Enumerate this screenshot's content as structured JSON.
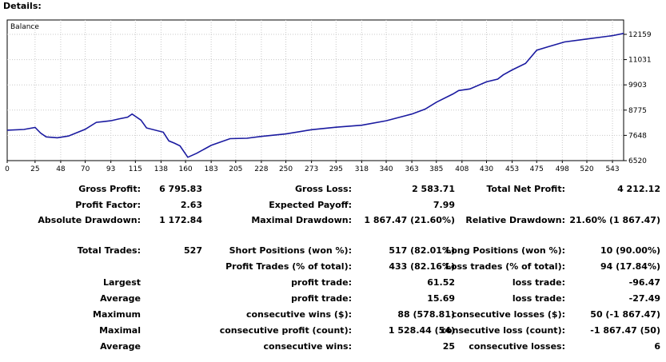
{
  "header": {
    "title": "Details:"
  },
  "chart_data": {
    "type": "line",
    "legend": "Balance",
    "series": [
      {
        "name": "Balance",
        "x": [
          0,
          15,
          25,
          30,
          35,
          45,
          55,
          70,
          80,
          93,
          100,
          108,
          112,
          120,
          125,
          140,
          145,
          150,
          155,
          162,
          170,
          183,
          200,
          215,
          228,
          250,
          273,
          295,
          318,
          340,
          363,
          375,
          385,
          400,
          405,
          415,
          430,
          440,
          445,
          453,
          465,
          475,
          485,
          500,
          520,
          543,
          553
        ],
        "values": [
          7880,
          7910,
          8000,
          7750,
          7580,
          7540,
          7620,
          7920,
          8230,
          8300,
          8380,
          8460,
          8600,
          8330,
          7980,
          7790,
          7400,
          7300,
          7180,
          6670,
          6850,
          7200,
          7500,
          7520,
          7600,
          7710,
          7900,
          8010,
          8100,
          8300,
          8600,
          8820,
          9130,
          9500,
          9650,
          9720,
          10040,
          10160,
          10350,
          10570,
          10860,
          11450,
          11600,
          11820,
          11950,
          12100,
          12200
        ]
      }
    ],
    "x_ticks": [
      0,
      25,
      48,
      70,
      93,
      115,
      138,
      160,
      183,
      205,
      228,
      250,
      273,
      295,
      318,
      340,
      363,
      385,
      408,
      430,
      453,
      475,
      498,
      520,
      543
    ],
    "y_ticks": [
      6520,
      7648,
      8775,
      9903,
      11031,
      12159
    ],
    "xlim": [
      0,
      553
    ],
    "ylim": [
      6520,
      12800
    ],
    "line_color": "#1a1aa0"
  },
  "stats": {
    "gross_profit": {
      "label": "Gross Profit:",
      "value": "6 795.83"
    },
    "gross_loss": {
      "label": "Gross Loss:",
      "value": "2 583.71"
    },
    "total_net_profit": {
      "label": "Total Net Profit:",
      "value": "4 212.12"
    },
    "profit_factor": {
      "label": "Profit Factor:",
      "value": "2.63"
    },
    "expected_payoff": {
      "label": "Expected Payoff:",
      "value": "7.99"
    },
    "absolute_drawdown": {
      "label": "Absolute Drawdown:",
      "value": "1 172.84"
    },
    "maximal_drawdown": {
      "label": "Maximal Drawdown:",
      "value": "1 867.47 (21.60%)"
    },
    "relative_drawdown": {
      "label": "Relative Drawdown:",
      "value": "21.60% (1 867.47)"
    },
    "total_trades": {
      "label": "Total Trades:",
      "value": "527"
    },
    "short_positions": {
      "label": "Short Positions (won %):",
      "value": "517 (82.01%)"
    },
    "long_positions": {
      "label": "Long Positions (won %):",
      "value": "10 (90.00%)"
    },
    "profit_trades": {
      "label": "Profit Trades (% of total):",
      "value": "433 (82.16%)"
    },
    "loss_trades": {
      "label": "Loss trades (% of total):",
      "value": "94 (17.84%)"
    },
    "largest": {
      "label": "Largest",
      "profit_label": "profit trade:",
      "profit_value": "61.52",
      "loss_label": "loss trade:",
      "loss_value": "-96.47"
    },
    "average": {
      "label": "Average",
      "profit_label": "profit trade:",
      "profit_value": "15.69",
      "loss_label": "loss trade:",
      "loss_value": "-27.49"
    },
    "maximum": {
      "label": "Maximum",
      "profit_label": "consecutive wins ($):",
      "profit_value": "88 (578.81)",
      "loss_label": "consecutive losses ($):",
      "loss_value": "50 (-1 867.47)"
    },
    "maximal": {
      "label": "Maximal",
      "profit_label": "consecutive profit (count):",
      "profit_value": "1 528.44 (54)",
      "loss_label": "consecutive loss (count):",
      "loss_value": "-1 867.47 (50)"
    },
    "average_consec": {
      "label": "Average",
      "profit_label": "consecutive wins:",
      "profit_value": "25",
      "loss_label": "consecutive losses:",
      "loss_value": "6"
    }
  }
}
